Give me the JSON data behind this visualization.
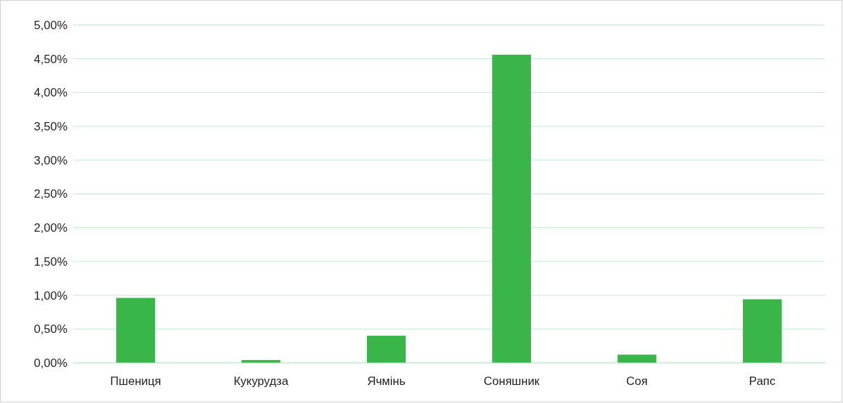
{
  "chart_data": {
    "type": "bar",
    "categories": [
      "Пшениця",
      "Кукурудза",
      "Ячмінь",
      "Соняшник",
      "Соя",
      "Рапс"
    ],
    "values": [
      0.96,
      0.04,
      0.4,
      4.56,
      0.12,
      0.94
    ],
    "color": "#39b54a",
    "ylim": [
      0,
      5
    ],
    "yticks": [
      {
        "value": 0,
        "label": "0,00%"
      },
      {
        "value": 0.5,
        "label": "0,50%"
      },
      {
        "value": 1,
        "label": "1,00%"
      },
      {
        "value": 1.5,
        "label": "1,50%"
      },
      {
        "value": 2,
        "label": "2,00%"
      },
      {
        "value": 2.5,
        "label": "2,50%"
      },
      {
        "value": 3,
        "label": "3,00%"
      },
      {
        "value": 3.5,
        "label": "3,50%"
      },
      {
        "value": 4,
        "label": "4,00%"
      },
      {
        "value": 4.5,
        "label": "4,50%"
      },
      {
        "value": 5,
        "label": "5,00%"
      }
    ],
    "grid": "y"
  }
}
